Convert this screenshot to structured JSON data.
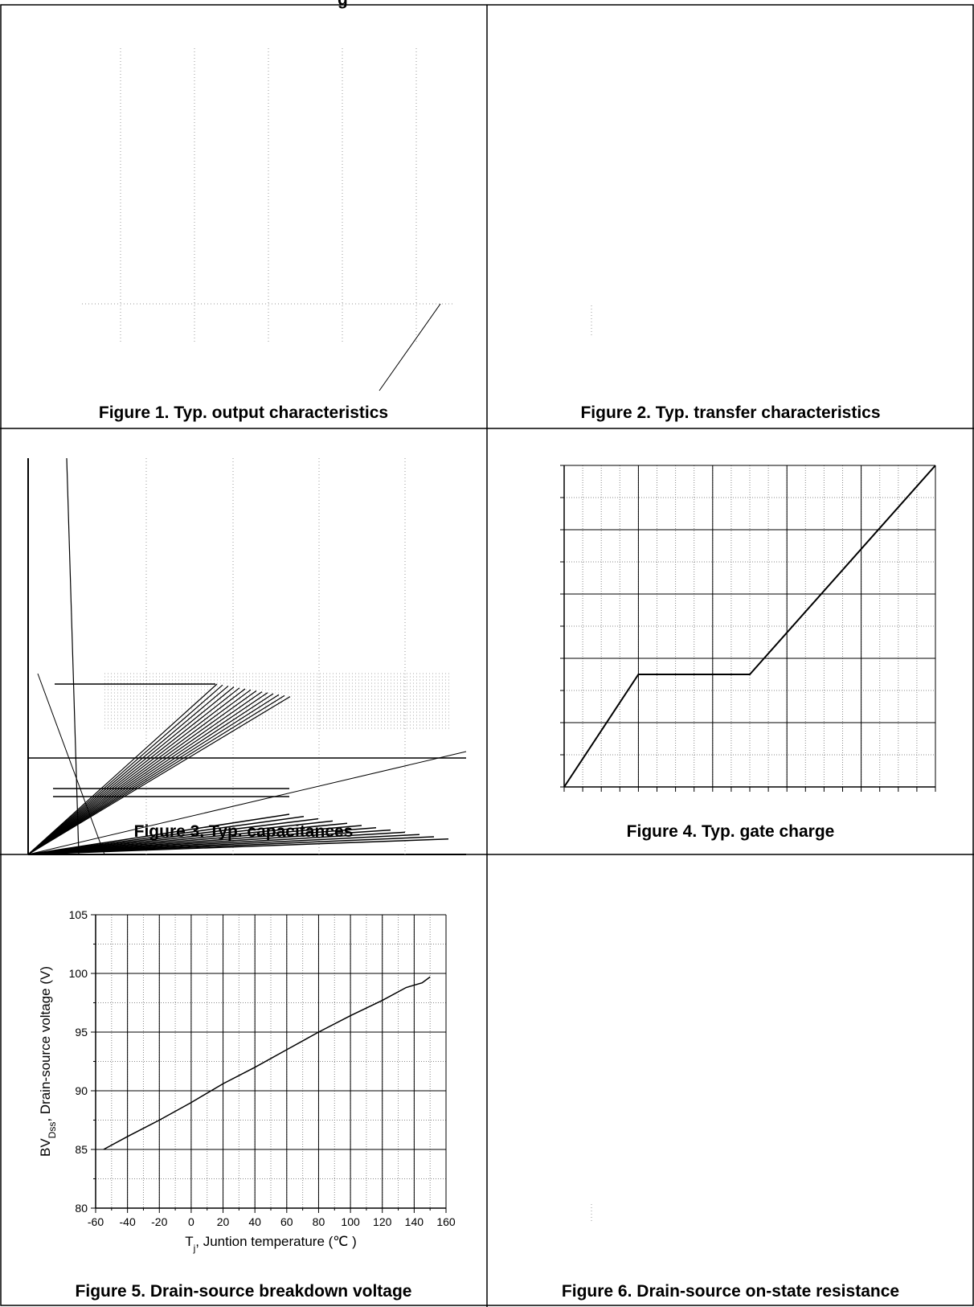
{
  "header_fragment": "g",
  "figures": [
    {
      "id": "fig1",
      "caption": "Figure 1. Typ. output characteristics"
    },
    {
      "id": "fig2",
      "caption": "Figure 2. Typ. transfer characteristics"
    },
    {
      "id": "fig3",
      "caption": "Figure 3. Typ. capacitances"
    },
    {
      "id": "fig4",
      "caption": "Figure 4. Typ. gate charge"
    },
    {
      "id": "fig5",
      "caption": "Figure 5. Drain-source breakdown voltage"
    },
    {
      "id": "fig6",
      "caption": "Figure 6. Drain-source on-state resistance"
    }
  ],
  "chart_data": [
    {
      "id": "fig4",
      "type": "line",
      "title": "",
      "xlabel": "",
      "ylabel": "",
      "x": [
        0,
        2,
        5,
        10
      ],
      "y": [
        0,
        3.5,
        3.5,
        10
      ],
      "xlim": [
        0,
        10
      ],
      "ylim": [
        0,
        10
      ],
      "grid": true
    },
    {
      "id": "fig5",
      "type": "line",
      "title": "",
      "xlabel_main": "T",
      "xlabel_sub": "j",
      "xlabel_rest": ", Juntion temperature (℃ )",
      "ylabel_main": "BV",
      "ylabel_sub": "Dss",
      "ylabel_rest": ", Drain-source voltage (V)",
      "xlim": [
        -60,
        160
      ],
      "ylim": [
        80,
        105
      ],
      "xticks": [
        "-60",
        "-40",
        "-20",
        "0",
        "20",
        "40",
        "60",
        "80",
        "100",
        "120",
        "140",
        "160"
      ],
      "yticks": [
        "80",
        "85",
        "90",
        "95",
        "100",
        "105"
      ],
      "x": [
        -55,
        -40,
        -20,
        0,
        20,
        40,
        60,
        80,
        100,
        120,
        135,
        145,
        150
      ],
      "y": [
        85,
        86.1,
        87.5,
        89,
        90.6,
        92,
        93.5,
        95,
        96.4,
        97.7,
        98.8,
        99.2,
        99.7
      ],
      "grid": true
    }
  ]
}
